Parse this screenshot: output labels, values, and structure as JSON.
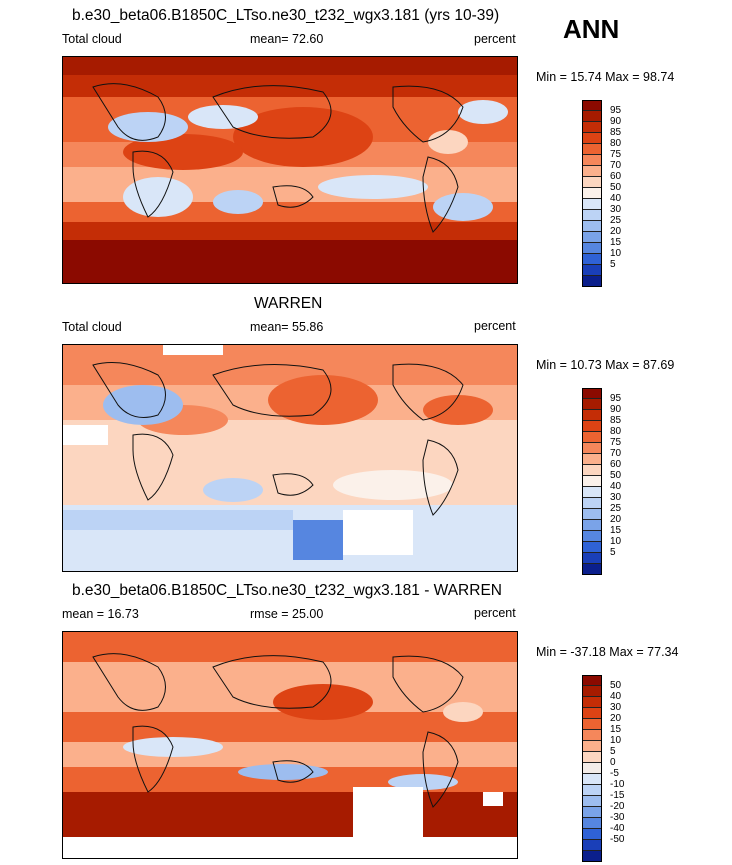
{
  "season": "ANN",
  "panels": [
    {
      "title": "b.e30_beta06.B1850C_LTso.ne30_t232_wgx3.181 (yrs 10-39)",
      "left_label": "Total cloud",
      "center_label": "mean=  72.60",
      "right_label": "percent",
      "minmax": "Min =  15.74 Max =  98.74"
    },
    {
      "title": "WARREN",
      "left_label": "Total cloud",
      "center_label": "mean=  55.86",
      "right_label": "percent",
      "minmax": "Min =  10.73 Max =  87.69"
    },
    {
      "title": "b.e30_beta06.B1850C_LTso.ne30_t232_wgx3.181 - WARREN",
      "left_label": "mean =  16.73",
      "center_label": "rmse =  25.00",
      "right_label": "percent",
      "minmax": "Min = -37.18 Max =  77.34"
    }
  ],
  "colorbars": {
    "cloud": {
      "labels": [
        "95",
        "90",
        "85",
        "80",
        "75",
        "70",
        "60",
        "50",
        "40",
        "30",
        "25",
        "20",
        "15",
        "10",
        "5"
      ],
      "colors": [
        "#8b0a00",
        "#a61b00",
        "#c42d06",
        "#dd4314",
        "#ec6331",
        "#f5875b",
        "#fbb08c",
        "#fcd6c0",
        "#fbf1ea",
        "#d9e6f8",
        "#bcd3f5",
        "#9dbdef",
        "#7aa3e8",
        "#5686e0",
        "#2f62d6",
        "#1a3fb8",
        "#0b1f8c"
      ]
    },
    "diff": {
      "labels": [
        "50",
        "40",
        "30",
        "20",
        "15",
        "10",
        "5",
        "0",
        "-5",
        "-10",
        "-15",
        "-20",
        "-30",
        "-40",
        "-50"
      ],
      "colors": [
        "#8b0a00",
        "#a61b00",
        "#c42d06",
        "#dd4314",
        "#ec6331",
        "#f5875b",
        "#fbb08c",
        "#fcd6c0",
        "#f3ece8",
        "#d9e6f8",
        "#bcd3f5",
        "#9dbdef",
        "#7aa3e8",
        "#5686e0",
        "#2f62d6",
        "#1a3fb8",
        "#0b1f8c"
      ]
    }
  }
}
